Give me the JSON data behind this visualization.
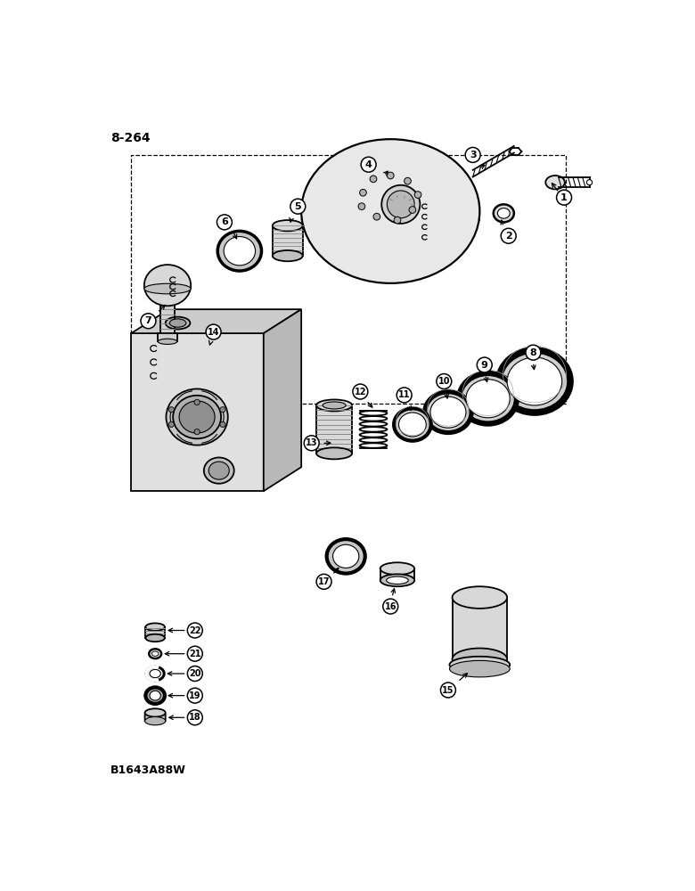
{
  "page_ref": "8-264",
  "drawing_ref": "B1643A88W",
  "background_color": "#ffffff",
  "line_color": "#000000",
  "label_fontsize": 8,
  "figsize": [
    7.8,
    10.0
  ],
  "dpi": 100
}
